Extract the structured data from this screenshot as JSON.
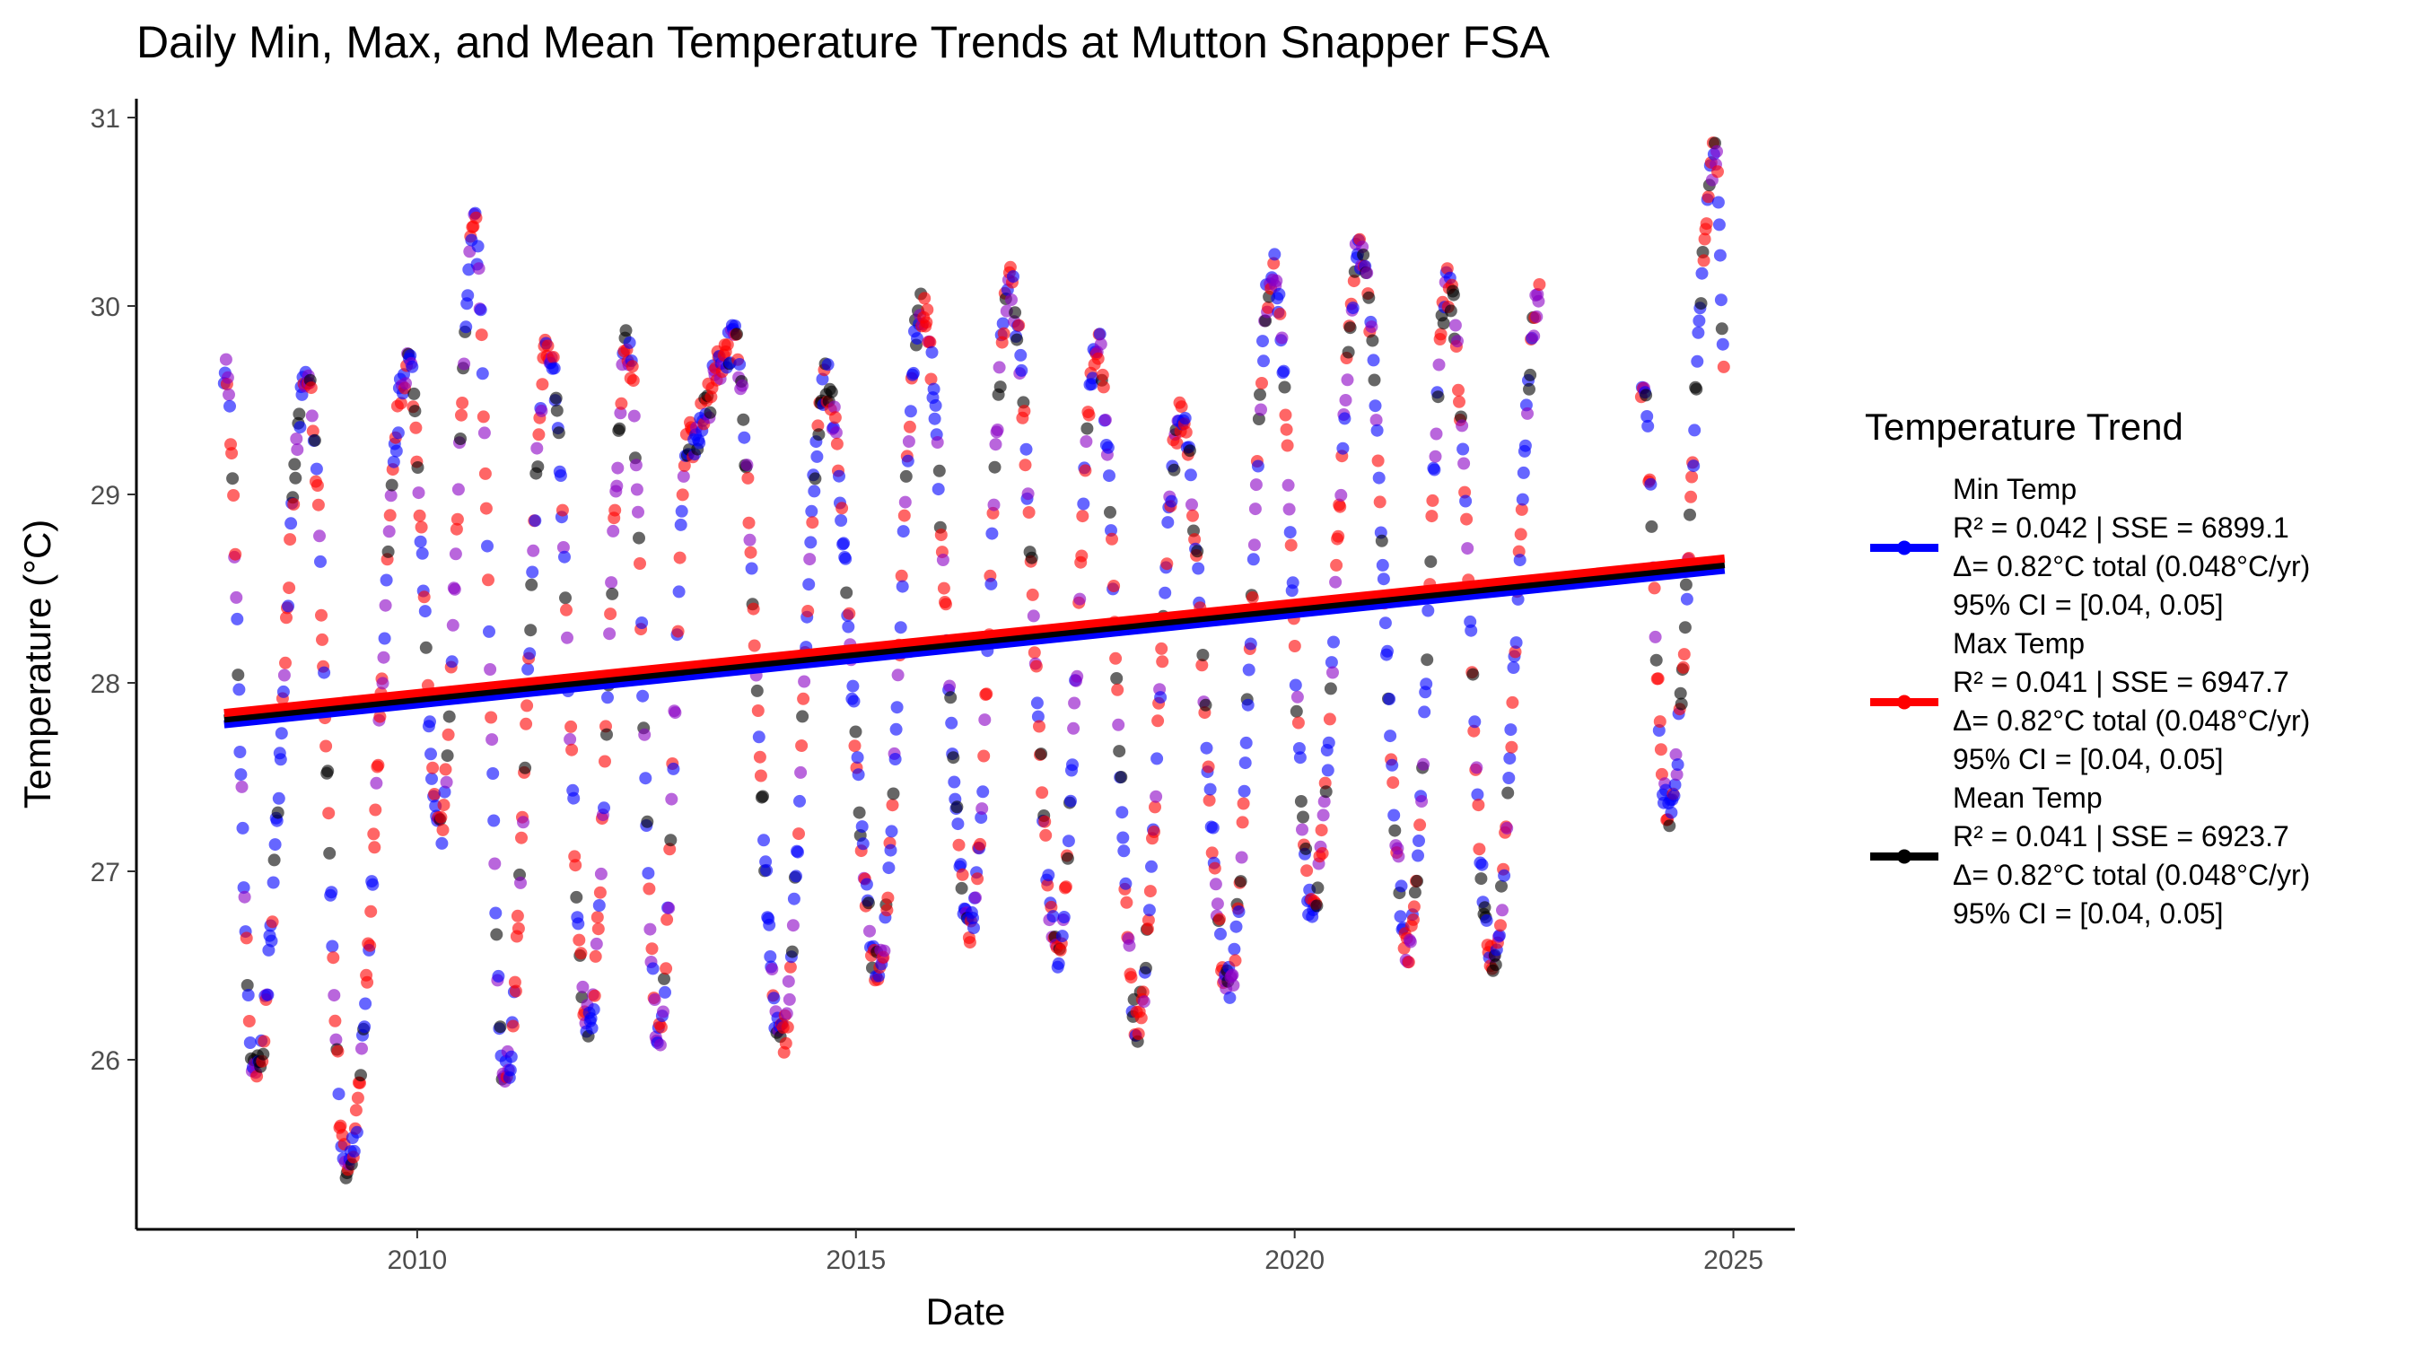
{
  "chart_data": {
    "type": "scatter",
    "title": "Daily Min, Max, and Mean Temperature Trends at Mutton Snapper FSA",
    "xlabel": "Date",
    "ylabel": "Temperature (°C)",
    "xlim": [
      2006.8,
      2025.7
    ],
    "ylim": [
      25.1,
      31.1
    ],
    "x_ticks": [
      {
        "value": 2010,
        "label": "2010"
      },
      {
        "value": 2015,
        "label": "2015"
      },
      {
        "value": 2020,
        "label": "2020"
      },
      {
        "value": 2025,
        "label": "2025"
      }
    ],
    "y_ticks": [
      {
        "value": 26,
        "label": "26"
      },
      {
        "value": 27,
        "label": "27"
      },
      {
        "value": 28,
        "label": "28"
      },
      {
        "value": 29,
        "label": "29"
      },
      {
        "value": 30,
        "label": "30"
      },
      {
        "value": 31,
        "label": "31"
      }
    ],
    "grid": false,
    "legend": {
      "title": "Temperature Trend",
      "position": "right",
      "entries": [
        {
          "name": "Min Temp",
          "color": "#0000ff",
          "stats": [
            "R² = 0.042 | SSE = 6899.1",
            "Δ= 0.82°C total (0.048°C/yr)",
            "95% CI = [0.04, 0.05]"
          ]
        },
        {
          "name": "Max Temp",
          "color": "#ff0000",
          "stats": [
            "R² = 0.041 | SSE = 6947.7",
            "Δ= 0.82°C total (0.048°C/yr)",
            "95% CI = [0.04, 0.05]"
          ]
        },
        {
          "name": "Mean Temp",
          "color": "#000000",
          "stats": [
            "R² = 0.041 | SSE = 6923.7",
            "Δ= 0.82°C total (0.048°C/yr)",
            "95% CI = [0.04, 0.05]"
          ]
        }
      ]
    },
    "trend_lines": [
      {
        "series": "Min Temp",
        "color": "#0000ff",
        "x": [
          2007.8,
          2024.9
        ],
        "y": [
          27.78,
          28.6
        ]
      },
      {
        "series": "Mean Temp",
        "color": "#000000",
        "x": [
          2007.8,
          2024.9
        ],
        "y": [
          27.81,
          28.63
        ]
      },
      {
        "series": "Max Temp",
        "color": "#ff0000",
        "x": [
          2007.8,
          2024.9
        ],
        "y": [
          27.84,
          28.66
        ]
      }
    ],
    "seasonal_extremes": {
      "x": [
        2007.8,
        2008.15,
        2008.75,
        2009.2,
        2009.9,
        2010.25,
        2010.65,
        2011.0,
        2011.5,
        2011.95,
        2012.4,
        2012.75,
        2013.1,
        2013.6,
        2014.15,
        2014.65,
        2015.25,
        2015.75,
        2016.3,
        2016.75,
        2017.3,
        2017.75,
        2018.2,
        2018.7,
        2019.25,
        2019.75,
        2020.2,
        2020.75,
        2021.3,
        2021.75,
        2022.25,
        2022.8,
        2023.95,
        2024.25,
        2024.8,
        2024.9
      ],
      "y": [
        29.7,
        25.9,
        29.6,
        25.4,
        29.7,
        27.2,
        30.4,
        25.9,
        29.8,
        26.2,
        29.8,
        26.1,
        29.3,
        29.8,
        26.1,
        29.6,
        26.5,
        30.0,
        26.7,
        30.1,
        26.6,
        29.8,
        26.2,
        29.4,
        26.4,
        30.2,
        26.8,
        30.3,
        26.6,
        30.1,
        26.5,
        30.1,
        29.6,
        27.3,
        30.8,
        29.7
      ]
    }
  }
}
